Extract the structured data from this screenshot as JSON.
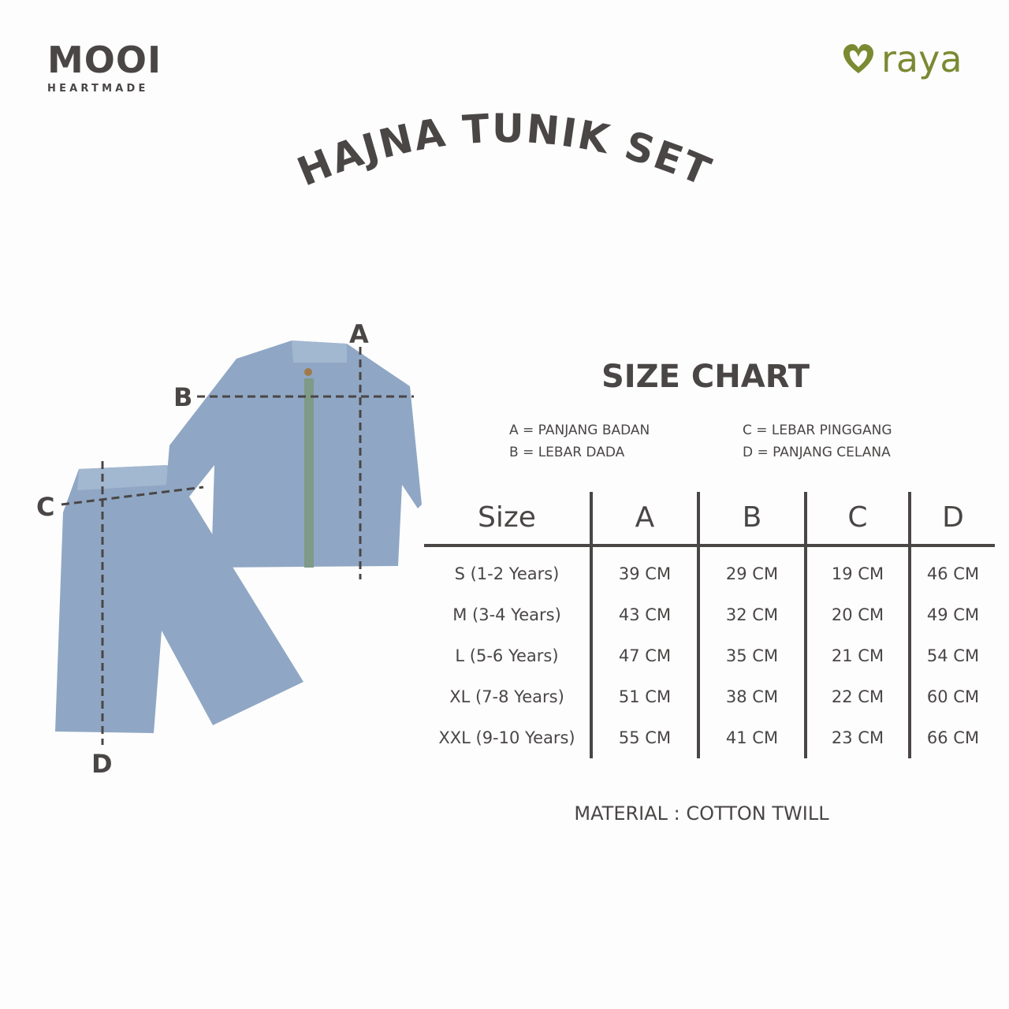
{
  "brand_left": {
    "name": "MOOI",
    "tagline": "HEARTMADE"
  },
  "brand_right": {
    "name": "raya",
    "color": "#7a8a32"
  },
  "title": "HAJNA TUNIK SET",
  "diagram": {
    "labels": [
      "A",
      "B",
      "C",
      "D"
    ],
    "garment_color": "#8fa7c4"
  },
  "size_chart": {
    "title": "SIZE CHART",
    "legend": [
      "A = PANJANG BADAN",
      "B = LEBAR DADA",
      "C = LEBAR PINGGANG",
      "D = PANJANG CELANA"
    ],
    "headers": [
      "Size",
      "A",
      "B",
      "C",
      "D"
    ],
    "rows": [
      [
        "S (1-2 Years)",
        "39 CM",
        "29 CM",
        "19 CM",
        "46 CM"
      ],
      [
        "M (3-4 Years)",
        "43 CM",
        "32 CM",
        "20 CM",
        "49 CM"
      ],
      [
        "L (5-6 Years)",
        "47 CM",
        "35 CM",
        "21 CM",
        "54 CM"
      ],
      [
        "XL (7-8 Years)",
        "51 CM",
        "38 CM",
        "22 CM",
        "60 CM"
      ],
      [
        "XXL (9-10 Years)",
        "55 CM",
        "41 CM",
        "23 CM",
        "66 CM"
      ]
    ]
  },
  "material": "MATERIAL : COTTON TWILL",
  "colors": {
    "text": "#4a4646",
    "accent": "#7a8a32"
  }
}
